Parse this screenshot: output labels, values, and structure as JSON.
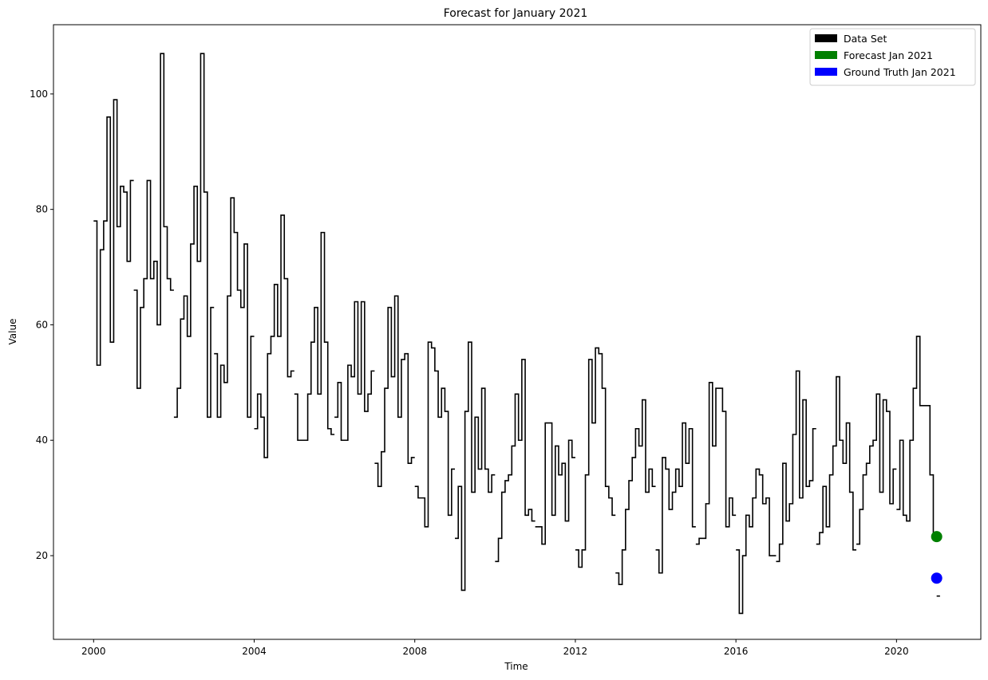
{
  "chart_data": {
    "type": "line",
    "step": true,
    "title": "Forecast for January 2021",
    "xlabel": "Time",
    "ylabel": "Value",
    "xlim": [
      1999.0,
      2022.1
    ],
    "ylim": [
      5.5,
      112
    ],
    "xticks": [
      2000,
      2004,
      2008,
      2012,
      2016,
      2020
    ],
    "yticks": [
      20,
      40,
      60,
      80,
      100
    ],
    "grid": false,
    "legend_position": "top-right",
    "legend": [
      {
        "label": "Data Set",
        "color": "#000000"
      },
      {
        "label": "Forecast Jan 2021",
        "color": "#008000"
      },
      {
        "label": "Ground Truth Jan 2021",
        "color": "#0000ff"
      }
    ],
    "series": [
      {
        "name": "Data Set",
        "color": "#000000",
        "segments": [
          {
            "start": 2000.0,
            "values": [
              78,
              53,
              73,
              78,
              96,
              57,
              99,
              77,
              84,
              83,
              71,
              85
            ]
          },
          {
            "start": 2001.0,
            "values": [
              66,
              49,
              63,
              68,
              85,
              68,
              71,
              60,
              107,
              77,
              68,
              66
            ]
          },
          {
            "start": 2002.0,
            "values": [
              44,
              49,
              61,
              65,
              58,
              74,
              84,
              71,
              107,
              83,
              44,
              63
            ]
          },
          {
            "start": 2003.0,
            "values": [
              55,
              44,
              53,
              50,
              65,
              82,
              76,
              66,
              63,
              74,
              44,
              58
            ]
          },
          {
            "start": 2004.0,
            "values": [
              42,
              48,
              44,
              37,
              55,
              58,
              67,
              58,
              79,
              68,
              51,
              52
            ]
          },
          {
            "start": 2005.0,
            "values": [
              48,
              40,
              40,
              40,
              48,
              57,
              63,
              48,
              76,
              57,
              42,
              41
            ]
          },
          {
            "start": 2006.0,
            "values": [
              44,
              50,
              40,
              40,
              53,
              51,
              64,
              48,
              64,
              45,
              48,
              52
            ]
          },
          {
            "start": 2007.0,
            "values": [
              36,
              32,
              38,
              49,
              63,
              51,
              65,
              44,
              54,
              55,
              36,
              37
            ]
          },
          {
            "start": 2008.0,
            "values": [
              32,
              30,
              30,
              25,
              57,
              56,
              52,
              44,
              49,
              45,
              27,
              35
            ]
          },
          {
            "start": 2009.0,
            "values": [
              23,
              32,
              14,
              45,
              57,
              31,
              44,
              35,
              49,
              35,
              31,
              34
            ]
          },
          {
            "start": 2010.0,
            "values": [
              19,
              23,
              31,
              33,
              34,
              39,
              48,
              40,
              54,
              27,
              28,
              26
            ]
          },
          {
            "start": 2011.0,
            "values": [
              25,
              25,
              22,
              43,
              43,
              27,
              39,
              34,
              36,
              26,
              40,
              37
            ]
          },
          {
            "start": 2012.0,
            "values": [
              21,
              18,
              21,
              34,
              54,
              43,
              56,
              55,
              49,
              32,
              30,
              27
            ]
          },
          {
            "start": 2013.0,
            "values": [
              17,
              15,
              21,
              28,
              33,
              37,
              42,
              39,
              47,
              31,
              35,
              32
            ]
          },
          {
            "start": 2014.0,
            "values": [
              21,
              17,
              37,
              35,
              28,
              31,
              35,
              32,
              43,
              36,
              42,
              25
            ]
          },
          {
            "start": 2015.0,
            "values": [
              22,
              23,
              23,
              29,
              50,
              39,
              49,
              49,
              45,
              25,
              30,
              27
            ]
          },
          {
            "start": 2016.0,
            "values": [
              21,
              10,
              20,
              27,
              25,
              30,
              35,
              34,
              29,
              30,
              20,
              20
            ]
          },
          {
            "start": 2017.0,
            "values": [
              19,
              22,
              36,
              26,
              29,
              41,
              52,
              30,
              47,
              32,
              33,
              42
            ]
          },
          {
            "start": 2018.0,
            "values": [
              22,
              24,
              32,
              25,
              34,
              39,
              51,
              40,
              36,
              43,
              31,
              21
            ]
          },
          {
            "start": 2019.0,
            "values": [
              22,
              28,
              34,
              36,
              39,
              40,
              48,
              31,
              47,
              45,
              29,
              35
            ]
          },
          {
            "start": 2020.0,
            "values": [
              28,
              40,
              27,
              26,
              40,
              49,
              58,
              46,
              46,
              46,
              34,
              23
            ]
          },
          {
            "start": 2021.0,
            "values": [
              13
            ]
          }
        ]
      }
    ],
    "points": [
      {
        "name": "Forecast Jan 2021",
        "x": 2021.0,
        "y": 23.3,
        "color": "#008000"
      },
      {
        "name": "Ground Truth Jan 2021",
        "x": 2021.0,
        "y": 16.1,
        "color": "#0000ff"
      }
    ]
  }
}
